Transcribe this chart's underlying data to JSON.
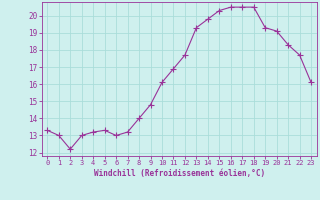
{
  "x": [
    0,
    1,
    2,
    3,
    4,
    5,
    6,
    7,
    8,
    9,
    10,
    11,
    12,
    13,
    14,
    15,
    16,
    17,
    18,
    19,
    20,
    21,
    22,
    23
  ],
  "y": [
    13.3,
    13.0,
    12.2,
    13.0,
    13.2,
    13.3,
    13.0,
    13.2,
    14.0,
    14.8,
    16.1,
    16.9,
    17.7,
    19.3,
    19.8,
    20.3,
    20.5,
    20.5,
    20.5,
    19.3,
    19.1,
    18.3,
    17.7,
    16.1
  ],
  "line_color": "#993399",
  "marker": "+",
  "marker_size": 4,
  "bg_color": "#cff0ee",
  "grid_color": "#aaddda",
  "xlabel": "Windchill (Refroidissement éolien,°C)",
  "xlabel_color": "#993399",
  "tick_color": "#993399",
  "spine_color": "#993399",
  "ylim": [
    11.8,
    20.8
  ],
  "xlim": [
    -0.5,
    23.5
  ],
  "yticks": [
    12,
    13,
    14,
    15,
    16,
    17,
    18,
    19,
    20
  ],
  "xticks": [
    0,
    1,
    2,
    3,
    4,
    5,
    6,
    7,
    8,
    9,
    10,
    11,
    12,
    13,
    14,
    15,
    16,
    17,
    18,
    19,
    20,
    21,
    22,
    23
  ]
}
